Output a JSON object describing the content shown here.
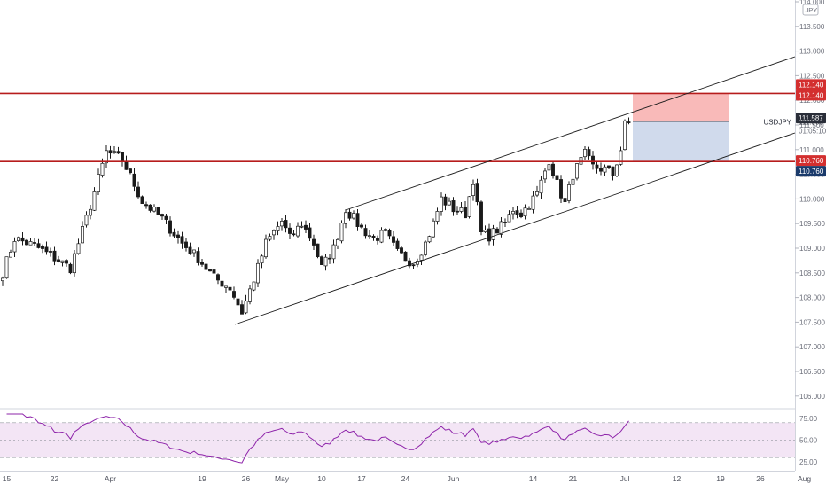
{
  "chart_data": {
    "type": "candlestick",
    "symbol": "USDJPY",
    "currency_badge": "JPY",
    "price_axis": {
      "min": 105.75,
      "max": 114.0,
      "ticks": [
        "114.000",
        "113.500",
        "113.000",
        "112.500",
        "112.000",
        "111.500",
        "111.000",
        "110.500",
        "110.000",
        "109.500",
        "109.000",
        "108.500",
        "108.000",
        "107.500",
        "107.000",
        "106.500",
        "106.000"
      ]
    },
    "time_axis": {
      "ticks": [
        {
          "label": "15",
          "i": 1
        },
        {
          "label": "22",
          "i": 13
        },
        {
          "label": "Apr",
          "i": 27
        },
        {
          "label": "19",
          "i": 50
        },
        {
          "label": "26",
          "i": 61
        },
        {
          "label": "May",
          "i": 70
        },
        {
          "label": "10",
          "i": 80
        },
        {
          "label": "17",
          "i": 90
        },
        {
          "label": "24",
          "i": 101
        },
        {
          "label": "Jun",
          "i": 113
        },
        {
          "label": "14",
          "i": 133
        },
        {
          "label": "21",
          "i": 143
        },
        {
          "label": "Jul",
          "i": 156
        },
        {
          "label": "12",
          "i": 169
        },
        {
          "label": "19",
          "i": 180
        },
        {
          "label": "26",
          "i": 190
        },
        {
          "label": "Aug",
          "i": 201
        }
      ]
    },
    "last_bar_index": 157,
    "close_keypoints": [
      [
        0,
        108.5
      ],
      [
        3,
        109.2
      ],
      [
        8,
        109.05
      ],
      [
        13,
        108.8
      ],
      [
        17,
        108.6
      ],
      [
        21,
        109.6
      ],
      [
        26,
        110.95
      ],
      [
        30,
        110.8
      ],
      [
        35,
        109.95
      ],
      [
        40,
        109.6
      ],
      [
        45,
        109.1
      ],
      [
        49,
        108.8
      ],
      [
        53,
        108.4
      ],
      [
        57,
        108.2
      ],
      [
        60,
        107.7
      ],
      [
        64,
        108.6
      ],
      [
        66,
        109.1
      ],
      [
        70,
        109.55
      ],
      [
        72,
        109.2
      ],
      [
        75,
        109.5
      ],
      [
        78,
        109.1
      ],
      [
        80,
        108.6
      ],
      [
        83,
        109.0
      ],
      [
        86,
        109.8
      ],
      [
        90,
        109.4
      ],
      [
        93,
        109.2
      ],
      [
        96,
        109.3
      ],
      [
        99,
        108.9
      ],
      [
        103,
        108.7
      ],
      [
        106,
        109.1
      ],
      [
        108,
        109.5
      ],
      [
        110,
        110.0
      ],
      [
        113,
        109.8
      ],
      [
        116,
        109.7
      ],
      [
        118,
        110.4
      ],
      [
        120,
        109.3
      ],
      [
        122,
        109.25
      ],
      [
        126,
        109.5
      ],
      [
        128,
        109.8
      ],
      [
        130,
        109.7
      ],
      [
        134,
        110.1
      ],
      [
        137,
        110.8
      ],
      [
        139,
        110.3
      ],
      [
        141,
        109.9
      ],
      [
        143,
        110.5
      ],
      [
        146,
        110.9
      ],
      [
        148,
        110.65
      ],
      [
        151,
        110.6
      ],
      [
        153,
        110.5
      ],
      [
        155,
        111.0
      ],
      [
        156,
        111.5
      ],
      [
        157,
        111.55
      ]
    ],
    "rsi": {
      "ticks": [
        "75.00",
        "50.00",
        "25.00"
      ],
      "levels": [
        70,
        30
      ],
      "last_value": 72
    },
    "horizontal_lines": [
      {
        "price": 112.14,
        "label": "112.140",
        "color": "#b71c1c"
      },
      {
        "price": 110.76,
        "label": "110.760",
        "color": "#b71c1c"
      }
    ],
    "channel": {
      "lower": {
        "x1": 265,
        "y1": 366,
        "x2": 897,
        "y2": 150
      },
      "upper": {
        "x1": 390,
        "y1": 237,
        "x2": 897,
        "y2": 64
      }
    },
    "position_box": {
      "entry": 111.565,
      "target": 112.14,
      "stop": 110.76,
      "start_index": 158,
      "end_index": 182
    },
    "price_labels": {
      "stop_top": "112.140",
      "stop_bottom": "112.140",
      "current": "111.587",
      "symbol_label": "USDJPY",
      "symbol_price": "111.565",
      "countdown": "01:05:10",
      "target_top": "110.760",
      "target_bottom": "110.760"
    },
    "colors": {
      "candle": "#1a1a1a",
      "line_red": "#b71c1c",
      "risk_fill": "rgba(239,83,80,0.40)",
      "reward_fill": "rgba(120,150,200,0.35)",
      "rsi_line": "#8e24aa",
      "rsi_band": "rgba(156,39,176,0.12)",
      "label_red": "#d32f2f",
      "label_navy": "#1a3a6b",
      "label_dark": "#2a2e39"
    }
  }
}
